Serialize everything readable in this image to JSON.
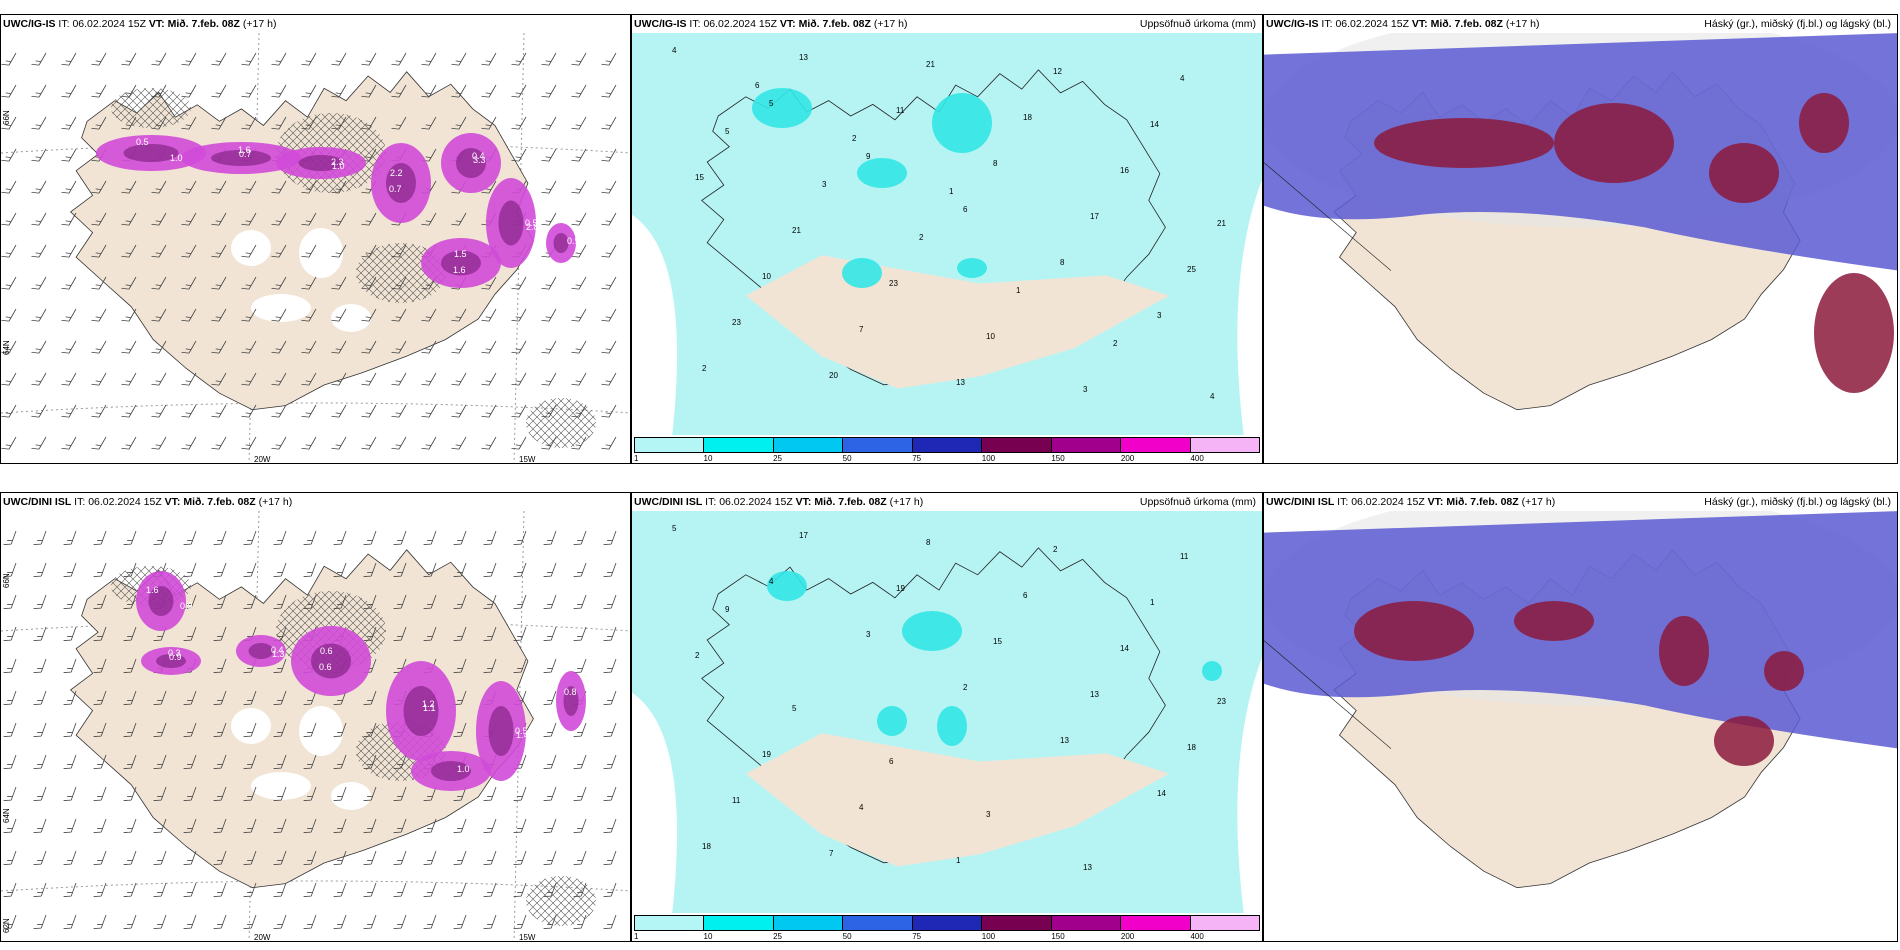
{
  "rows": [
    {
      "model": "UWC/IG-IS",
      "it_label": "IT:",
      "it_value": "06.02.2024 15Z",
      "vt_label": "VT:",
      "vt_value": "Mið. 7.feb. 08Z",
      "lead": "(+17 h)"
    },
    {
      "model": "UWC/DINI ISL",
      "it_label": "IT:",
      "it_value": "06.02.2024 15Z",
      "vt_label": "VT:",
      "vt_value": "Mið. 7.feb. 08Z",
      "lead": "(+17 h)"
    }
  ],
  "panel_titles": {
    "precip": "Uppsöfnuð úrkoma (mm)",
    "clouds": "Háský (gr.), miðský (fj.bl.) og lágský (bl.)"
  },
  "axis_labels": {
    "lon": [
      "20W",
      "15W"
    ],
    "lat": [
      "66N",
      "64N",
      "62N"
    ]
  },
  "colorbar": {
    "labels": [
      "1",
      "10",
      "25",
      "50",
      "75",
      "100",
      "150",
      "200",
      "400"
    ],
    "colors": [
      "#b4f5f5",
      "#00f0f0",
      "#00c8f0",
      "#2d64e6",
      "#1e28b4",
      "#780050",
      "#a0008c",
      "#f000c8",
      "#f5b4f5"
    ]
  },
  "colors": {
    "land": "#f1e4d4",
    "precip_light": "#b6f4f4",
    "precip_mid": "#33e6e6",
    "snow_magenta": "#d04ad8",
    "snow_dark": "#7a1a7a",
    "high_cloud": "#e6e6e6",
    "mid_cloud": "#5a5ad2",
    "low_cloud": "#8c1a3c"
  },
  "values": {
    "precip_top": [
      "4",
      "5",
      "9",
      "6",
      "8",
      "3",
      "2",
      "13",
      "11",
      "8",
      "17",
      "25",
      "23",
      "20",
      "21",
      "18",
      "16",
      "21",
      "10",
      "7",
      "13",
      "12",
      "14",
      "15",
      "21",
      "23",
      "10",
      "3",
      "4",
      "5",
      "3",
      "2",
      "1",
      "2",
      "4",
      "6",
      "2",
      "1"
    ],
    "precip_bottom": [
      "5",
      "4",
      "3",
      "2",
      "13",
      "14",
      "18",
      "17",
      "19",
      "15",
      "13",
      "18",
      "11",
      "7",
      "8",
      "6",
      "14",
      "23",
      "19",
      "4",
      "1",
      "2",
      "1",
      "2",
      "5",
      "6",
      "3",
      "13",
      "11",
      "9"
    ],
    "snow_top": [
      "0.5",
      "0.7",
      "1.0",
      "2.2",
      "3.3",
      "2.8",
      "1.5",
      "0.9",
      "1.0",
      "1.6",
      "2.3",
      "0.7",
      "0.4",
      "0.5",
      "1.6"
    ],
    "snow_bottom": [
      "1.6",
      "0.9",
      "1.3",
      "0.6",
      "1.1",
      "1.4",
      "0.8",
      "1.0",
      "0.9",
      "0.3",
      "0.4",
      "0.6",
      "1.2",
      "0.5"
    ]
  }
}
